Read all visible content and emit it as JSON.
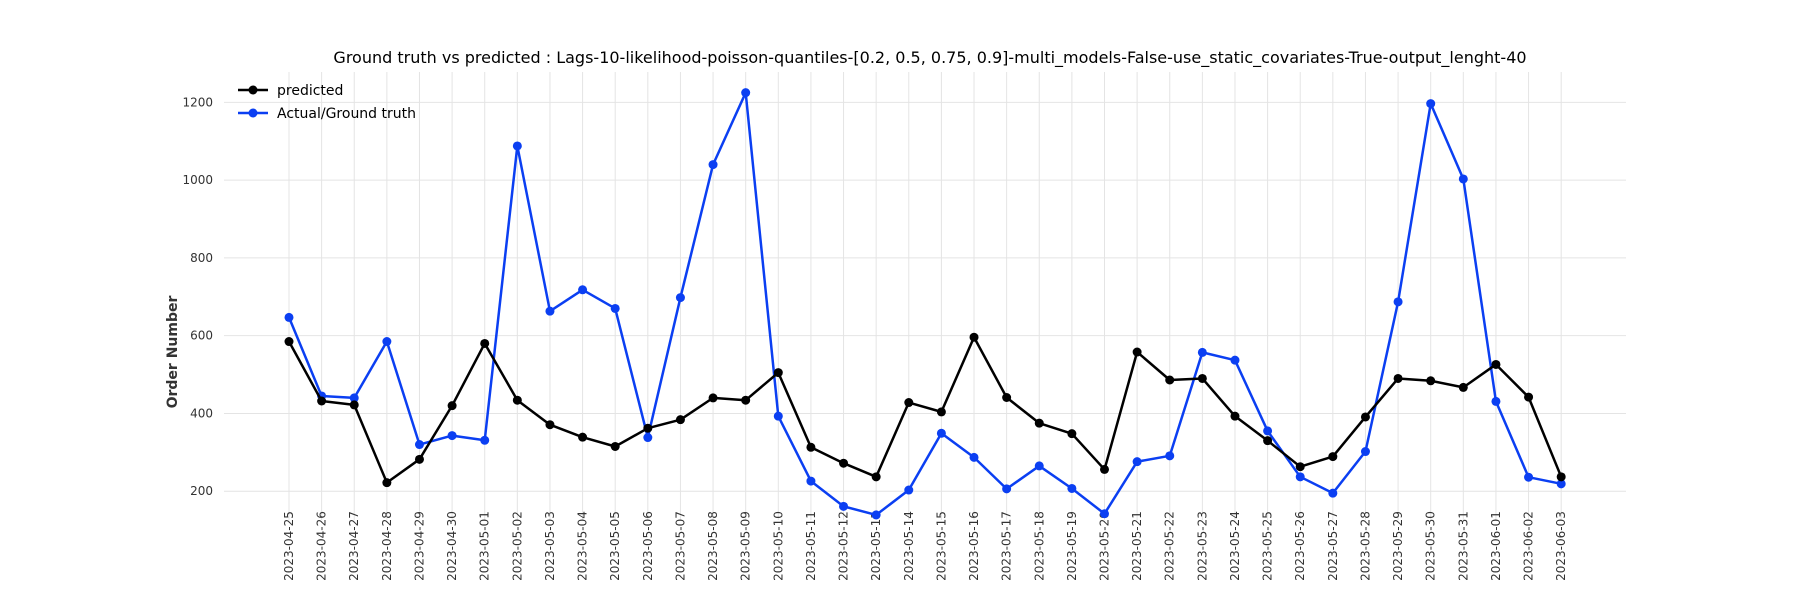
{
  "chart_data": {
    "type": "line",
    "title": "Ground truth vs predicted : Lags-10-likelihood-poisson-quantiles-[0.2, 0.5, 0.75, 0.9]-multi_models-False-use_static_covariates-True-output_lenght-40",
    "xlabel": "",
    "ylabel": "Order Number",
    "ylim": [
      100,
      1280
    ],
    "yticks": [
      200,
      400,
      600,
      800,
      1000,
      1200
    ],
    "grid": true,
    "legend_position": "top-left",
    "categories": [
      "2023-04-25",
      "2023-04-26",
      "2023-04-27",
      "2023-04-28",
      "2023-04-29",
      "2023-04-30",
      "2023-05-01",
      "2023-05-02",
      "2023-05-03",
      "2023-05-04",
      "2023-05-05",
      "2023-05-06",
      "2023-05-07",
      "2023-05-08",
      "2023-05-09",
      "2023-05-10",
      "2023-05-11",
      "2023-05-12",
      "2023-05-13",
      "2023-05-14",
      "2023-05-15",
      "2023-05-16",
      "2023-05-17",
      "2023-05-18",
      "2023-05-19",
      "2023-05-20",
      "2023-05-21",
      "2023-05-22",
      "2023-05-23",
      "2023-05-24",
      "2023-05-25",
      "2023-05-26",
      "2023-05-27",
      "2023-05-28",
      "2023-05-29",
      "2023-05-30",
      "2023-05-31",
      "2023-06-01",
      "2023-06-02",
      "2023-06-03"
    ],
    "series": [
      {
        "name": "predicted",
        "color": "#000000",
        "values": [
          585,
          432,
          422,
          222,
          282,
          420,
          580,
          434,
          371,
          339,
          315,
          362,
          384,
          440,
          434,
          505,
          313,
          272,
          237,
          428,
          404,
          596,
          441,
          375,
          348,
          256,
          558,
          486,
          490,
          393,
          330,
          263,
          289,
          391,
          490,
          484,
          467,
          526,
          442,
          237
        ]
      },
      {
        "name": "Actual/Ground truth",
        "color": "#0b3ff2",
        "values": [
          647,
          445,
          440,
          585,
          320,
          343,
          331,
          1088,
          663,
          718,
          670,
          338,
          698,
          1040,
          1225,
          393,
          226,
          161,
          139,
          203,
          349,
          287,
          206,
          265,
          207,
          142,
          276,
          291,
          557,
          537,
          355,
          237,
          195,
          302,
          687,
          1197,
          1003,
          431,
          236,
          219
        ]
      }
    ]
  }
}
